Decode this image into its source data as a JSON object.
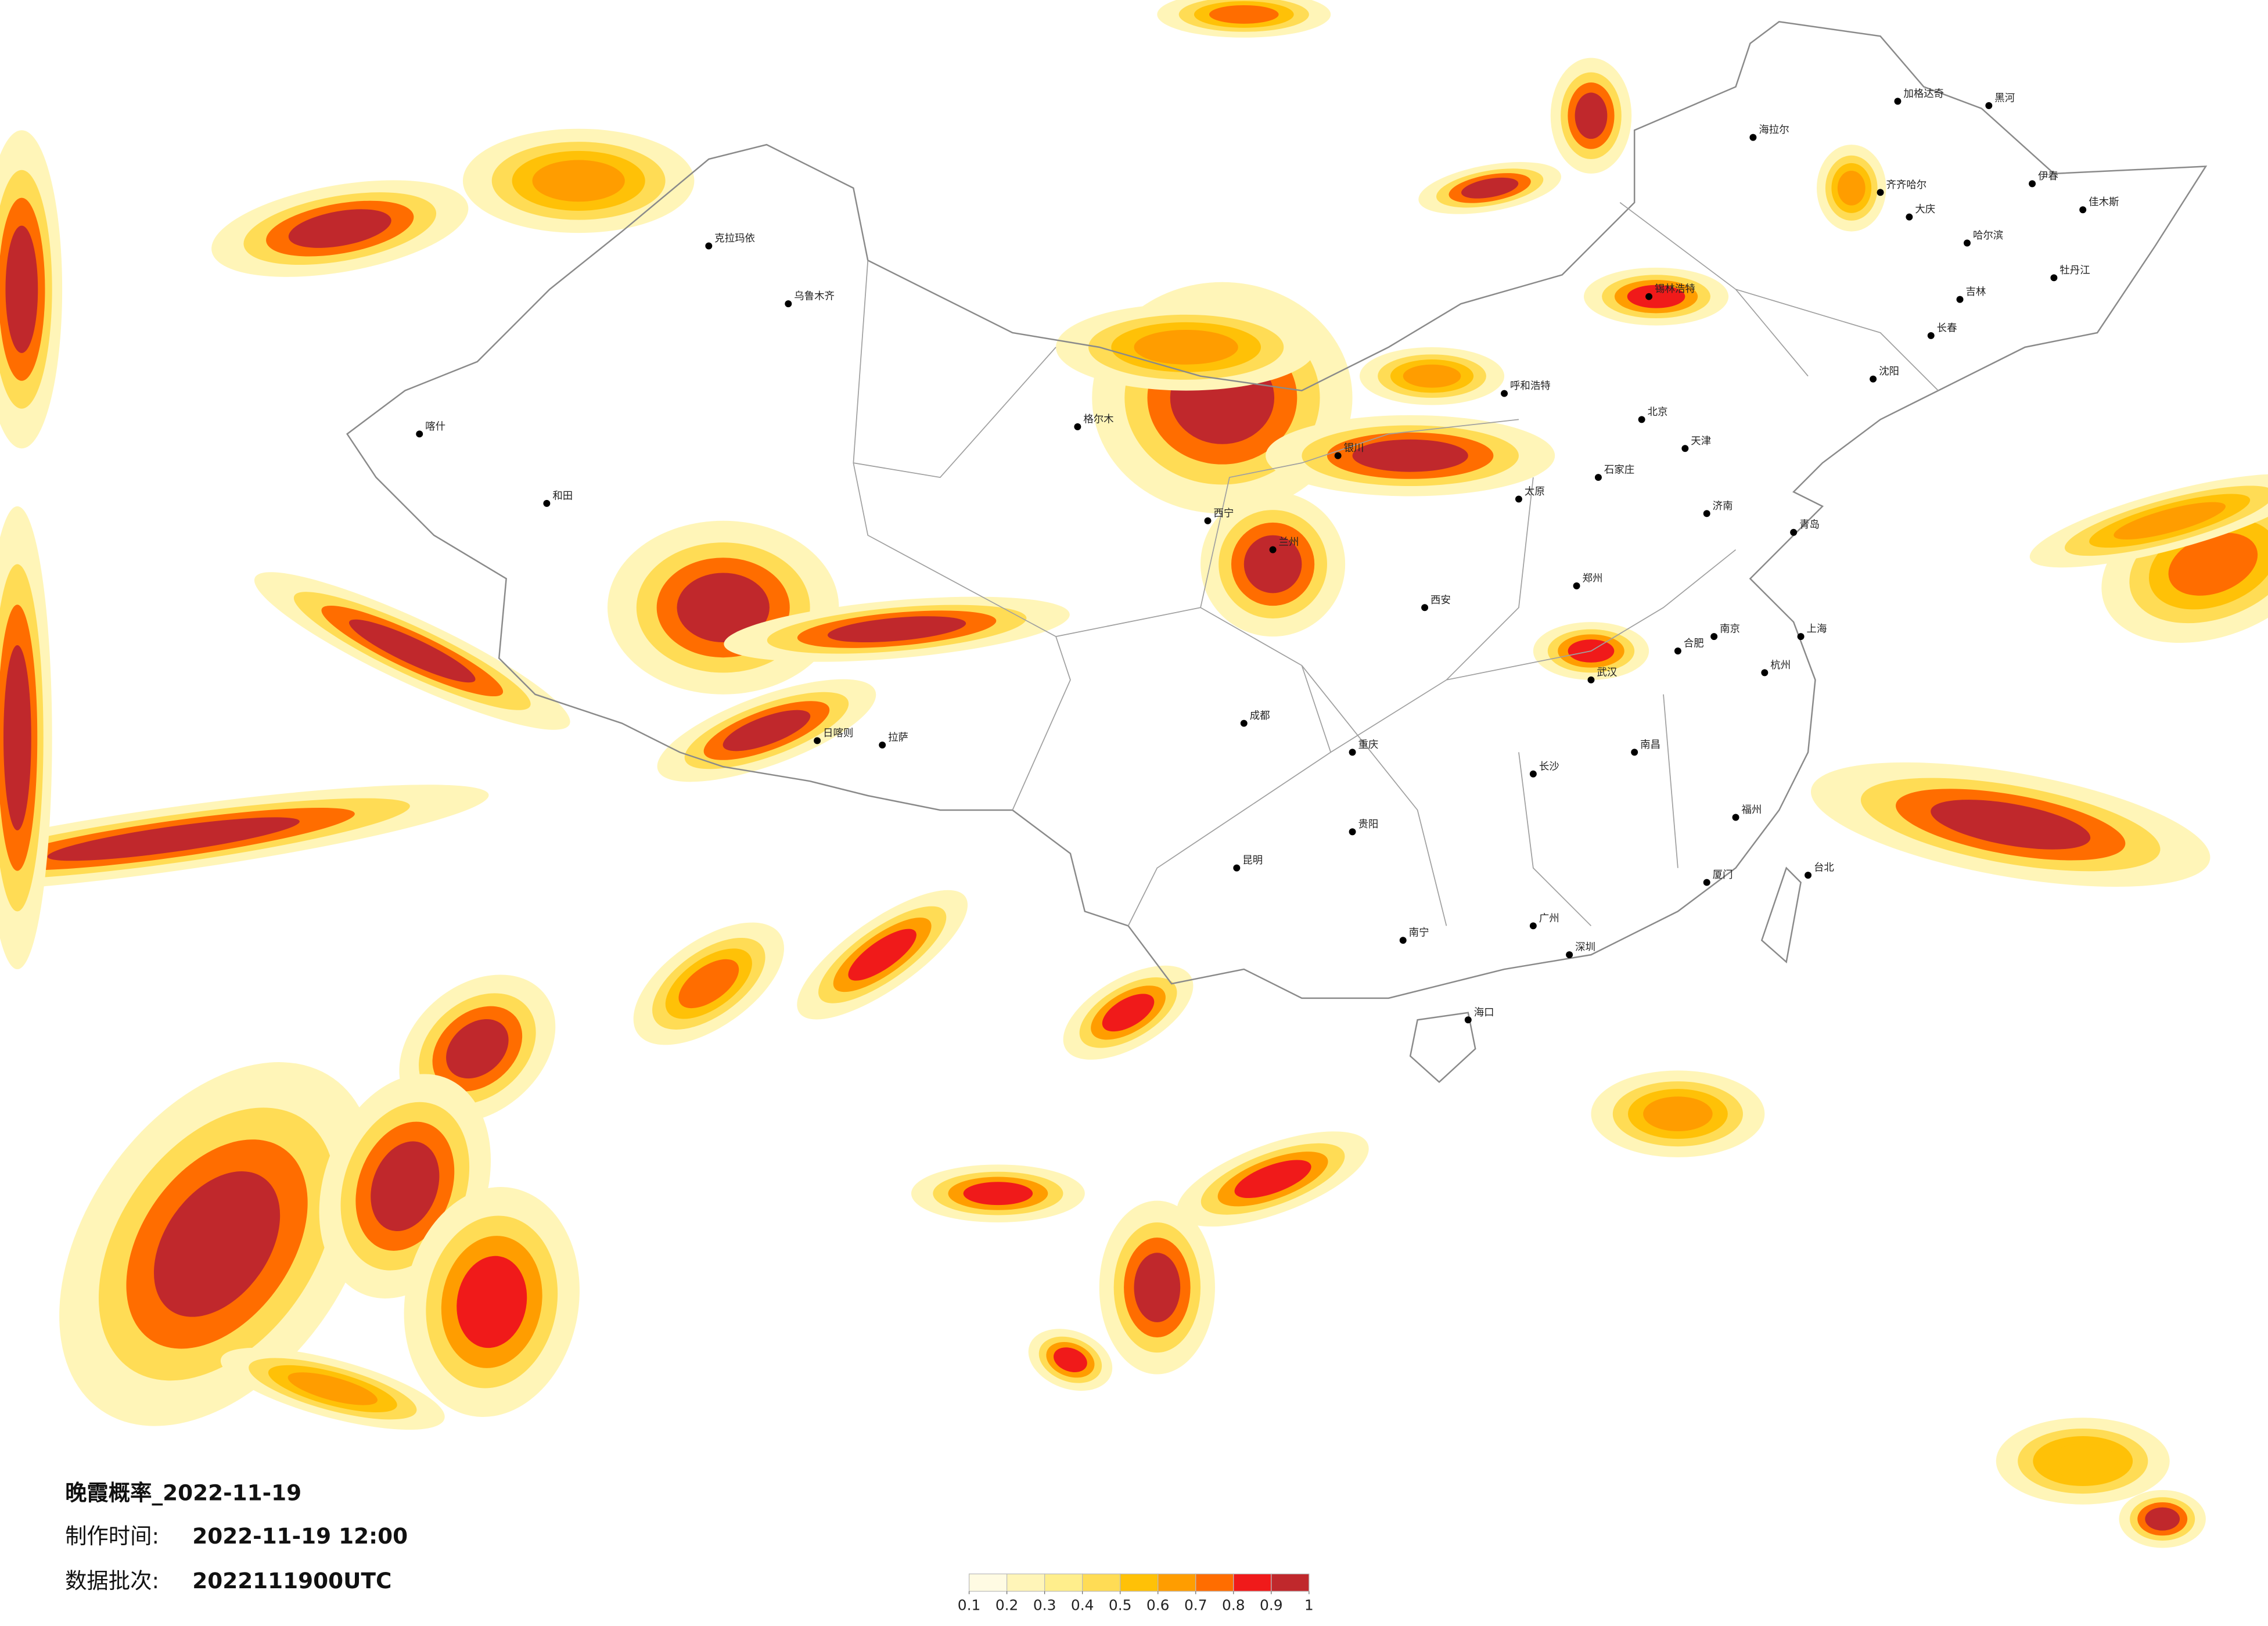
{
  "title": "晚霞概率_2022-11-19",
  "production_time": {
    "label": "制作时间:",
    "value": "2022-11-19 12:00"
  },
  "batch": {
    "label": "数据批次:",
    "value": "2022111900UTC"
  },
  "legend": {
    "colors": [
      "#fffbe3",
      "#fff5b8",
      "#ffee8c",
      "#ffdc55",
      "#ffc107",
      "#ff9d00",
      "#ff6d00",
      "#f01a1a",
      "#c0282c"
    ],
    "ticks": [
      0.1,
      0.2,
      0.3,
      0.4,
      0.5,
      0.6,
      0.7,
      0.8,
      0.9,
      1
    ]
  },
  "cities": [
    "加格达奇",
    "黑河",
    "海拉尔",
    "齐齐哈尔",
    "伊春",
    "大庆",
    "哈尔滨",
    "佳木斯",
    "牡丹江",
    "吉林",
    "长春",
    "沈阳",
    "锡林浩特",
    "呼和浩特",
    "北京",
    "天津",
    "石家庄",
    "太原",
    "济南",
    "青岛",
    "郑州",
    "西安",
    "兰州",
    "西宁",
    "银川",
    "乌鲁木齐",
    "克拉玛依",
    "喀什",
    "和田",
    "格尔木",
    "拉萨",
    "日喀则",
    "成都",
    "重庆",
    "贵阳",
    "昆明",
    "南宁",
    "广州",
    "深圳",
    "海口",
    "武汉",
    "长沙",
    "南昌",
    "合肥",
    "南京",
    "杭州",
    "上海",
    "福州",
    "厦门",
    "台北"
  ]
}
